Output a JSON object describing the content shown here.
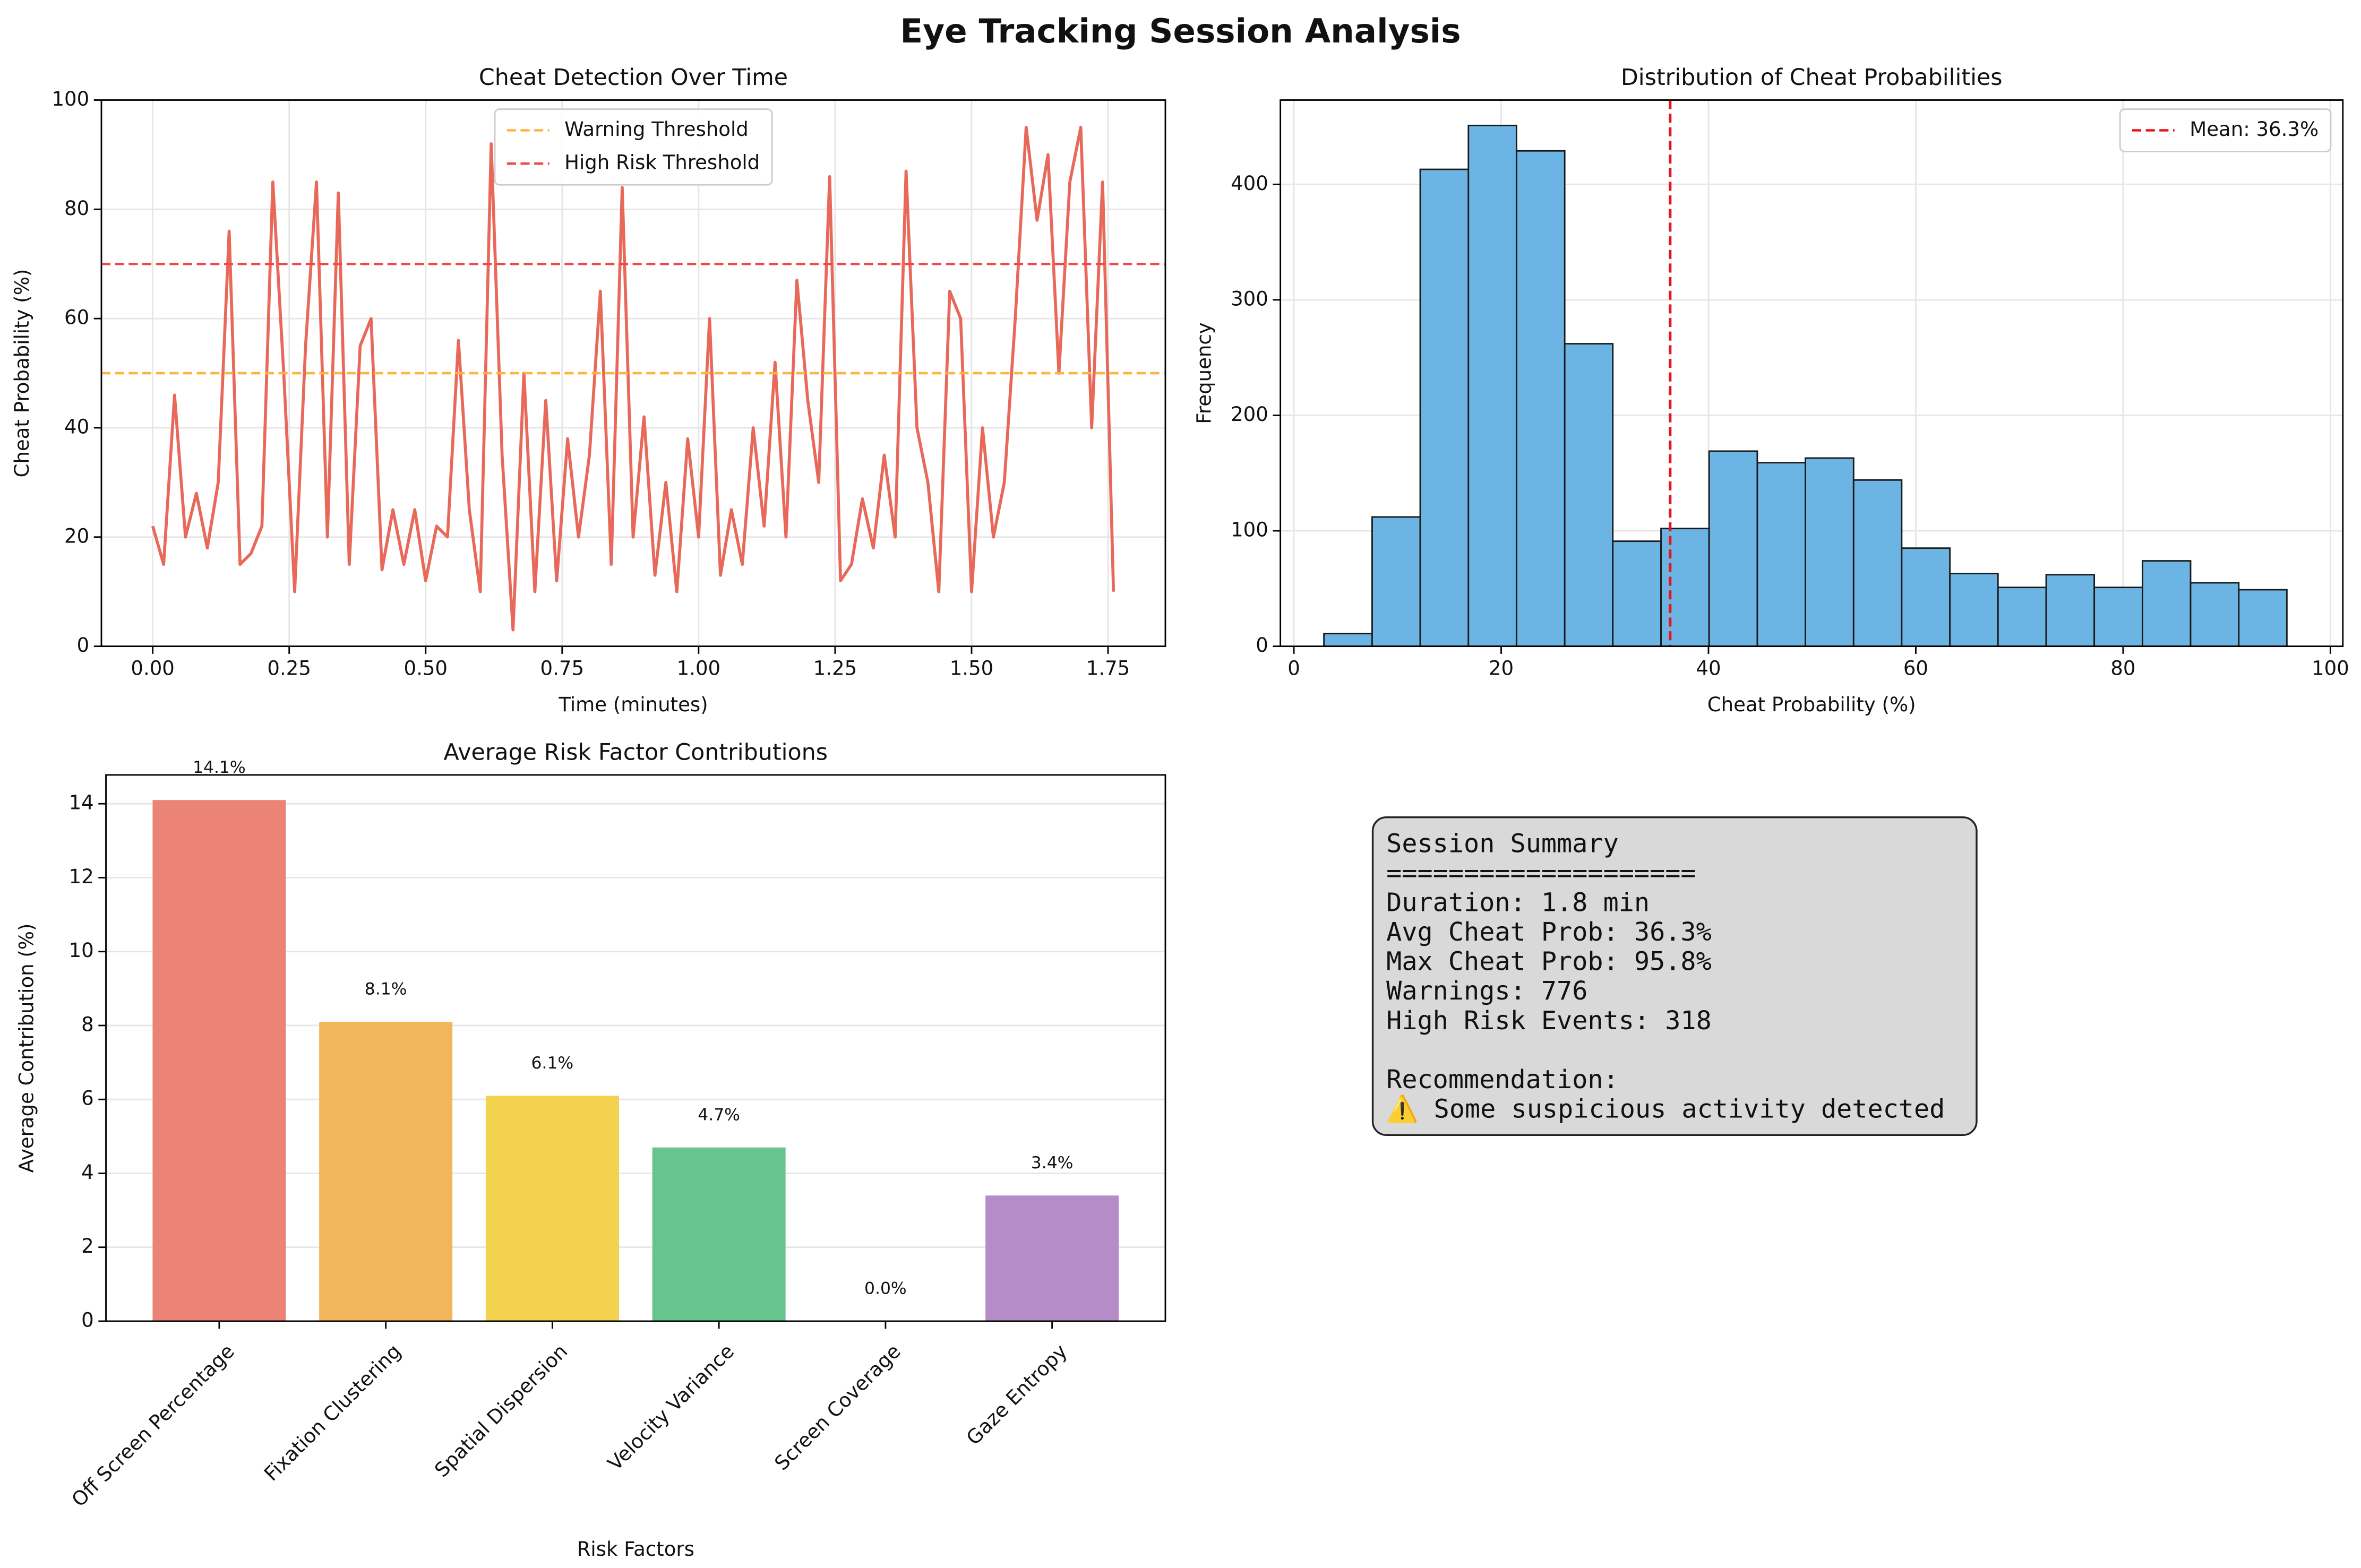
{
  "title": "Eye Tracking Session Analysis",
  "chart_data": [
    {
      "type": "line",
      "title": "Cheat Detection Over Time",
      "x_label": "Time (minutes)",
      "y_label": "Cheat Probability (%)",
      "x": [
        0,
        0.02,
        0.04,
        0.06,
        0.08,
        0.1,
        0.12,
        0.14,
        0.16,
        0.18,
        0.2,
        0.22,
        0.24,
        0.26,
        0.28,
        0.3,
        0.32,
        0.34,
        0.36,
        0.38,
        0.4,
        0.42,
        0.44,
        0.46,
        0.48,
        0.5,
        0.52,
        0.54,
        0.56,
        0.58,
        0.6,
        0.62,
        0.64,
        0.66,
        0.68,
        0.7,
        0.72,
        0.74,
        0.76,
        0.78,
        0.8,
        0.82,
        0.84,
        0.86,
        0.88,
        0.9,
        0.92,
        0.94,
        0.96,
        0.98,
        1,
        1.02,
        1.04,
        1.06,
        1.08,
        1.1,
        1.12,
        1.14,
        1.16,
        1.18,
        1.2,
        1.22,
        1.24,
        1.26,
        1.28,
        1.3,
        1.32,
        1.34,
        1.36,
        1.38,
        1.4,
        1.42,
        1.44,
        1.46,
        1.48,
        1.5,
        1.52,
        1.54,
        1.56,
        1.58,
        1.6,
        1.62,
        1.64,
        1.66,
        1.68,
        1.7,
        1.72,
        1.74,
        1.76
      ],
      "values": [
        22,
        15,
        46,
        20,
        28,
        18,
        30,
        76,
        15,
        17,
        22,
        85,
        50,
        10,
        55,
        85,
        20,
        83,
        15,
        55,
        60,
        14,
        25,
        15,
        25,
        12,
        22,
        20,
        56,
        25,
        10,
        92,
        35,
        3,
        50,
        10,
        45,
        12,
        38,
        20,
        35,
        65,
        15,
        84,
        20,
        42,
        13,
        30,
        10,
        38,
        20,
        60,
        13,
        25,
        15,
        40,
        22,
        52,
        20,
        67,
        45,
        30,
        86,
        12,
        15,
        27,
        18,
        35,
        20,
        87,
        40,
        30,
        10,
        65,
        60,
        10,
        40,
        20,
        30,
        60,
        95,
        78,
        90,
        50,
        85,
        95,
        40,
        85,
        10
      ],
      "color": "#e8685a",
      "reference_lines": [
        {
          "name": "Warning Threshold",
          "value": 50,
          "color": "#ffb340"
        },
        {
          "name": "High Risk Threshold",
          "value": 70,
          "color": "#f04848"
        }
      ],
      "xlim": [
        -0.094,
        1.855
      ],
      "ylim": [
        0,
        100
      ],
      "xticks": [
        {
          "value": 0,
          "label": "0.00"
        },
        {
          "value": 0.25,
          "label": "0.25"
        },
        {
          "value": 0.5,
          "label": "0.50"
        },
        {
          "value": 0.75,
          "label": "0.75"
        },
        {
          "value": 1,
          "label": "1.00"
        },
        {
          "value": 1.25,
          "label": "1.25"
        },
        {
          "value": 1.5,
          "label": "1.50"
        },
        {
          "value": 1.75,
          "label": "1.75"
        }
      ],
      "yticks": [
        0,
        20,
        40,
        60,
        80,
        100
      ],
      "grid": "both",
      "legend": "upper center"
    },
    {
      "type": "histogram",
      "title": "Distribution of Cheat Probabilities",
      "x_label": "Cheat Probability (%)",
      "y_label": "Frequency",
      "bins": [
        2.9,
        7.55,
        12.19,
        16.84,
        21.48,
        26.13,
        30.77,
        35.42,
        40.06,
        44.71,
        49.35,
        54.0,
        58.64,
        63.29,
        67.93,
        72.58,
        77.22,
        81.87,
        86.51,
        91.16,
        95.8
      ],
      "counts": [
        11,
        112,
        413,
        451,
        429,
        262,
        91,
        102,
        169,
        159,
        163,
        144,
        85,
        63,
        51,
        62,
        51,
        74,
        55,
        49
      ],
      "color": "#6cb4e4",
      "edgecolor": "#1a1a1a",
      "reference_lines": [
        {
          "name": "Mean: 36.3%",
          "value": 36.3,
          "color": "#e8141c"
        }
      ],
      "xlim": [
        -1.3,
        101.2
      ],
      "ylim": [
        0,
        473
      ],
      "xticks": [
        0,
        20,
        40,
        60,
        80,
        100
      ],
      "yticks": [
        0,
        100,
        200,
        300,
        400
      ],
      "grid": "both",
      "legend": "upper right"
    },
    {
      "type": "bar",
      "title": "Average Risk Factor Contributions",
      "x_label": "Risk Factors",
      "y_label": "Average Contribution (%)",
      "categories": [
        "Off Screen Percentage",
        "Fixation Clustering",
        "Spatial Dispersion",
        "Velocity Variance",
        "Screen Coverage",
        "Gaze Entropy"
      ],
      "values": [
        14.1,
        8.1,
        6.1,
        4.7,
        0.0,
        3.4
      ],
      "value_labels": [
        "14.1%",
        "8.1%",
        "6.1%",
        "4.7%",
        "0.0%",
        "3.4%"
      ],
      "colors": [
        "#ec8377",
        "#f3b55a",
        "#f3d250",
        "#68c48e",
        "#6fb2e0",
        "#b58bc8"
      ],
      "ylim": [
        0,
        14.78
      ],
      "yticks": [
        0,
        2,
        4,
        6,
        8,
        10,
        12,
        14
      ],
      "grid": "y"
    }
  ],
  "summary": {
    "title": "Session Summary",
    "rule": "====================",
    "lines": [
      "Duration: 1.8 min",
      "Avg Cheat Prob: 36.3%",
      "Max Cheat Prob: 95.8%",
      "Warnings: 776",
      "High Risk Events: 318"
    ],
    "recommendation_title": "Recommendation:",
    "recommendation": "⚠️ Some suspicious activity detected"
  }
}
